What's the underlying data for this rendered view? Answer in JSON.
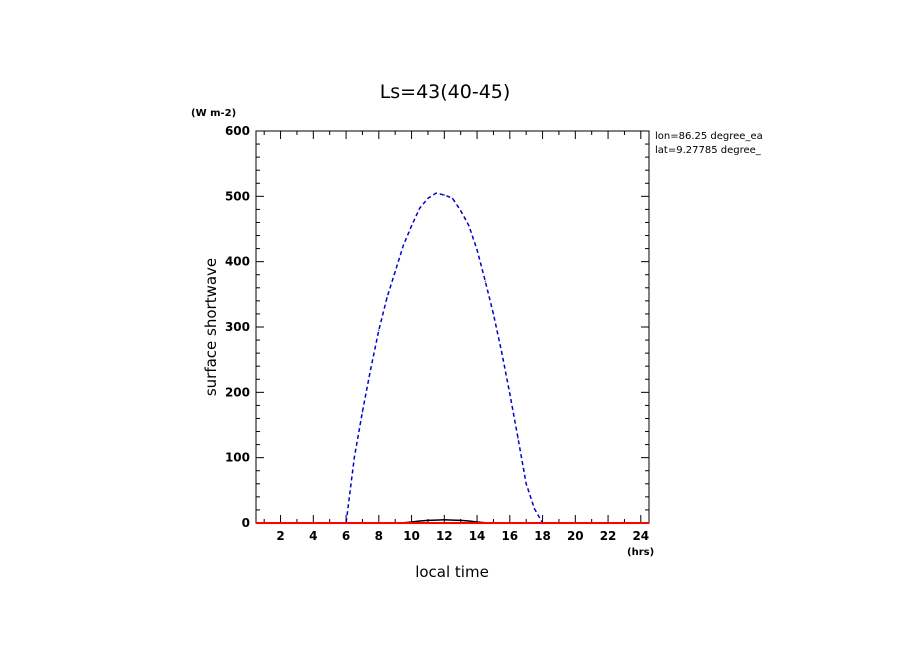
{
  "chart_data": {
    "type": "line",
    "title": "Ls=43(40-45)",
    "xlabel": "local time",
    "ylabel": "surface shortwave",
    "x_unit": "(hrs)",
    "y_unit": "(W m-2)",
    "xlim": [
      0.5,
      24.5
    ],
    "ylim": [
      0,
      600
    ],
    "x_ticks": [
      2,
      4,
      6,
      8,
      10,
      12,
      14,
      16,
      18,
      20,
      22,
      24
    ],
    "x_tick_labels": [
      "2",
      "4",
      "6",
      "8",
      "10",
      "12",
      "14",
      "16",
      "18",
      "20",
      "22",
      "24"
    ],
    "y_ticks": [
      0,
      100,
      200,
      300,
      400,
      500,
      600
    ],
    "y_tick_labels": [
      "0",
      "100",
      "200",
      "300",
      "400",
      "500",
      "600"
    ],
    "annotations": [
      "lon=86.25 degree_ea",
      "lat=9.27785 degree_"
    ],
    "x": [
      0.5,
      1,
      2,
      3,
      4,
      5,
      5.5,
      6,
      6.5,
      7,
      7.5,
      8,
      8.5,
      9,
      9.5,
      10,
      10.5,
      11,
      11.5,
      12,
      12.5,
      13,
      13.5,
      14,
      14.5,
      15,
      15.5,
      16,
      16.5,
      17,
      17.5,
      18,
      18.5,
      19,
      19.5,
      20,
      21,
      22,
      23,
      24,
      24.5
    ],
    "series": [
      {
        "color": "#0000cc",
        "dash": "dashed",
        "values": [
          0,
          0,
          0,
          0,
          0,
          0,
          0,
          0,
          100,
          170,
          235,
          295,
          345,
          385,
          425,
          455,
          482,
          497,
          505,
          502,
          497,
          478,
          455,
          418,
          370,
          320,
          262,
          198,
          130,
          60,
          22,
          0,
          0,
          0,
          0,
          0,
          0,
          0,
          0,
          0,
          0
        ]
      },
      {
        "color": "#000000",
        "dash": "solid",
        "values": [
          0,
          0,
          0,
          0,
          0,
          0,
          0,
          0,
          0,
          0,
          0,
          0,
          0,
          0,
          0.5,
          1.5,
          3,
          4,
          4.5,
          5,
          4.5,
          4,
          3,
          1.5,
          0.5,
          0,
          0,
          0,
          0,
          0,
          0,
          0,
          0,
          0,
          0,
          0,
          0,
          0,
          0,
          0,
          0
        ]
      },
      {
        "color": "#ff0000",
        "dash": "solid",
        "values": [
          0,
          0,
          0,
          0,
          0,
          0,
          0,
          0,
          0,
          0,
          0,
          0,
          0,
          0,
          0,
          0,
          0,
          0,
          0,
          0,
          0,
          0,
          0,
          0,
          0,
          0,
          0,
          0,
          0,
          0,
          0,
          0,
          0,
          0,
          0,
          0,
          0,
          0,
          0,
          0,
          0
        ]
      }
    ]
  }
}
